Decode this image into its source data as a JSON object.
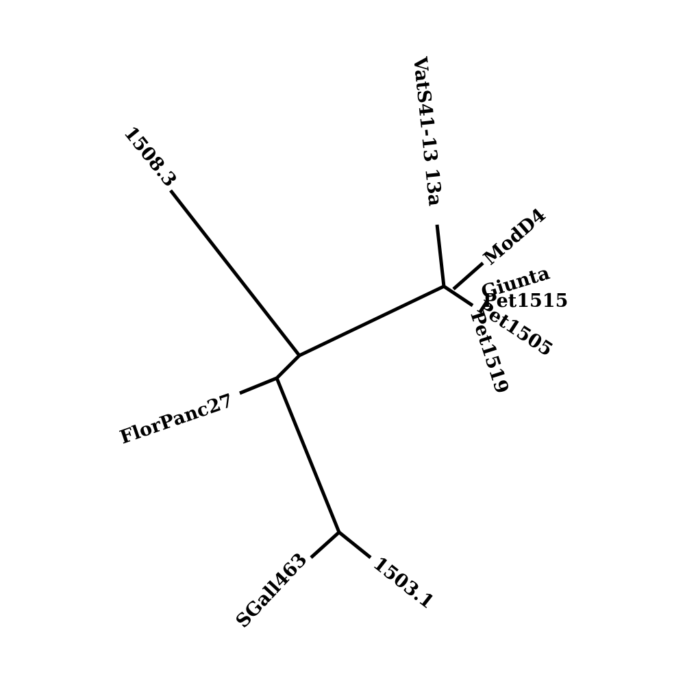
{
  "diagram": {
    "type": "unrooted-phylogenetic-tree",
    "line_color": "#000000",
    "background_color": "#ffffff",
    "leaves": [
      {
        "id": "vats41",
        "label": "VatS41-13 13a"
      },
      {
        "id": "modd4",
        "label": "ModD4"
      },
      {
        "id": "giunta",
        "label": "Giunta"
      },
      {
        "id": "pet1515",
        "label": "Pet1515"
      },
      {
        "id": "pet1505",
        "label": "Pet1505"
      },
      {
        "id": "pet1519",
        "label": "Pet1519"
      },
      {
        "id": "s1508",
        "label": "1508.3"
      },
      {
        "id": "florpanc27",
        "label": "FlorPanc27"
      },
      {
        "id": "sgall463",
        "label": "SGall463"
      },
      {
        "id": "s1503",
        "label": "1503.1"
      }
    ]
  }
}
